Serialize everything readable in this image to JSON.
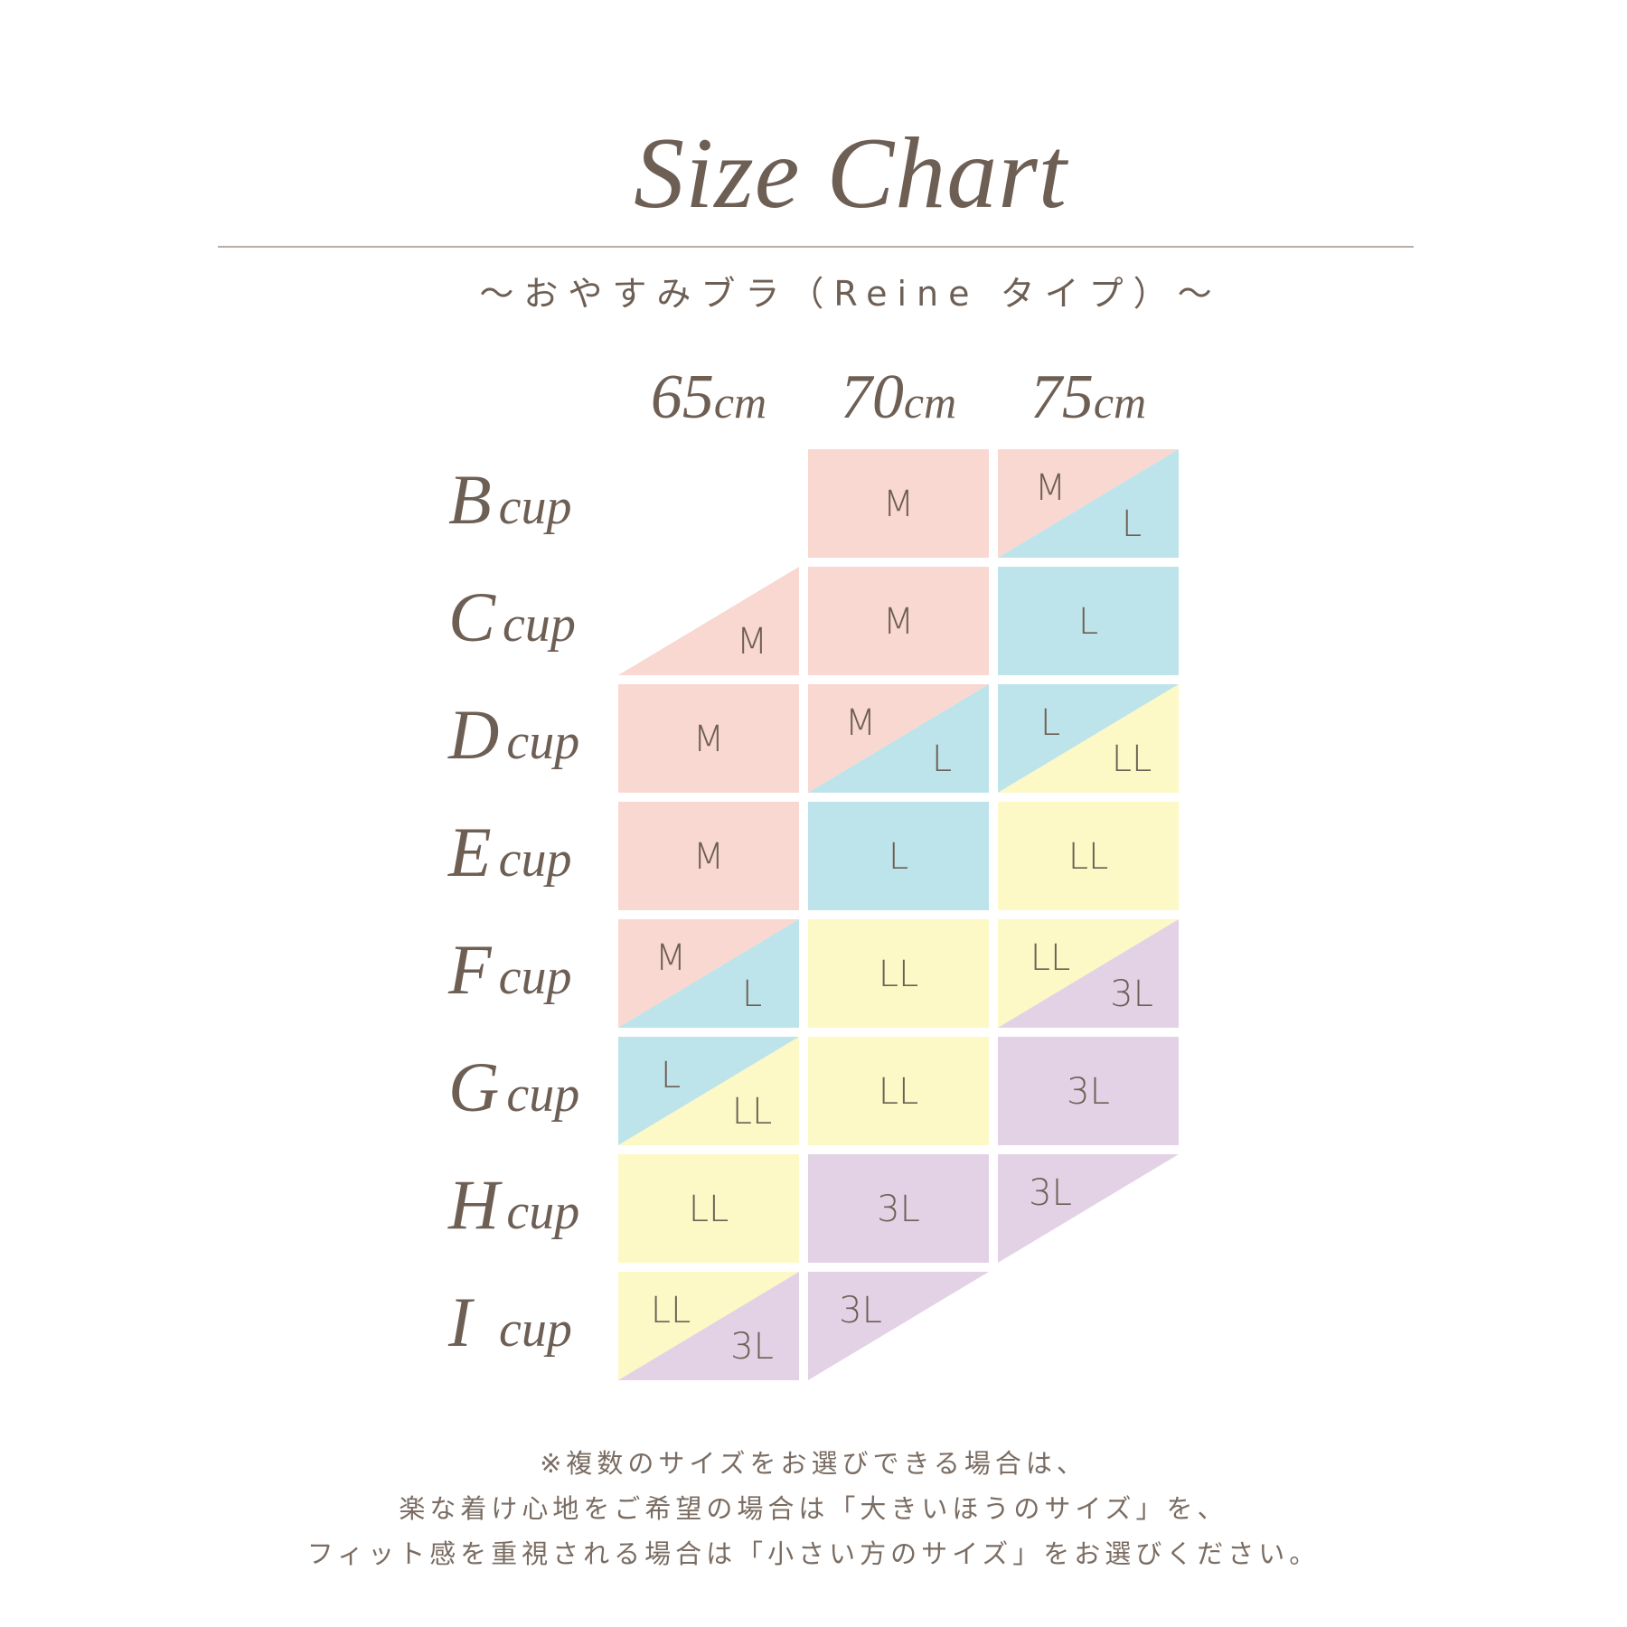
{
  "title": "Size Chart",
  "subtitle": "～おやすみブラ（Reine タイプ）～",
  "chart_data": {
    "type": "table",
    "columns": [
      "65cm",
      "70cm",
      "75cm"
    ],
    "column_unit": "cm",
    "column_values": [
      "65",
      "70",
      "75"
    ],
    "rows": [
      {
        "label": "B",
        "suffix": "cup",
        "cells": [
          null,
          {
            "full": "M"
          },
          {
            "top": "M",
            "bottom": "L"
          }
        ]
      },
      {
        "label": "C",
        "suffix": "cup",
        "cells": [
          {
            "bottom": "M"
          },
          {
            "full": "M"
          },
          {
            "full": "L"
          }
        ]
      },
      {
        "label": "D",
        "suffix": "cup",
        "cells": [
          {
            "full": "M"
          },
          {
            "top": "M",
            "bottom": "L"
          },
          {
            "top": "L",
            "bottom": "LL"
          }
        ]
      },
      {
        "label": "E",
        "suffix": "cup",
        "cells": [
          {
            "full": "M"
          },
          {
            "full": "L"
          },
          {
            "full": "LL"
          }
        ]
      },
      {
        "label": "F",
        "suffix": "cup",
        "cells": [
          {
            "top": "M",
            "bottom": "L"
          },
          {
            "full": "LL"
          },
          {
            "top": "LL",
            "bottom": "3L"
          }
        ]
      },
      {
        "label": "G",
        "suffix": "cup",
        "cells": [
          {
            "top": "L",
            "bottom": "LL"
          },
          {
            "full": "LL"
          },
          {
            "full": "3L"
          }
        ]
      },
      {
        "label": "H",
        "suffix": "cup",
        "cells": [
          {
            "full": "LL"
          },
          {
            "full": "3L"
          },
          {
            "top": "3L"
          }
        ]
      },
      {
        "label": "I",
        "suffix": "cup",
        "cells": [
          {
            "top": "LL",
            "bottom": "3L"
          },
          {
            "top": "3L"
          },
          null
        ]
      }
    ],
    "size_colors": {
      "M": "#f8d8d1",
      "L": "#bde3eb",
      "LL": "#fcf9c6",
      "3L": "#e3d1e6"
    }
  },
  "colors": {
    "text": "#6e5f55",
    "rule": "#b8aea6"
  },
  "footnote": [
    "※複数のサイズをお選びできる場合は、",
    "楽な着け心地をご希望の場合は「大きいほうのサイズ」を、",
    "フィット感を重視される場合は「小さい方のサイズ」をお選びください。"
  ]
}
